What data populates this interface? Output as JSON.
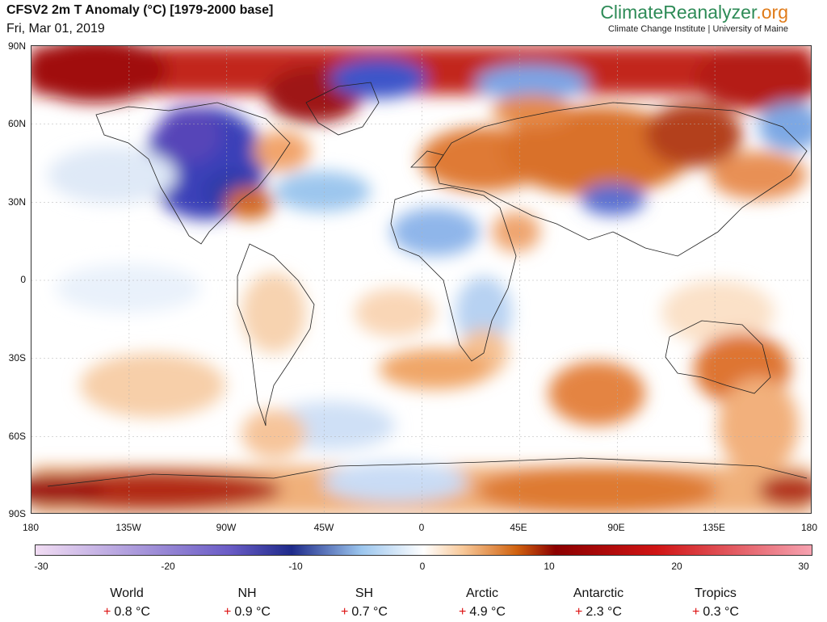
{
  "header": {
    "title": "CFSV2 2m T Anomaly (°C) [1979-2000 base]",
    "date": "Fri, Mar 01, 2019",
    "brand_part1": "Climate",
    "brand_part2": "Reanalyzer",
    "brand_part3": ".org",
    "brand_sub": "Climate Change Institute | University of Maine"
  },
  "map": {
    "lat_labels": [
      "90N",
      "60N",
      "30N",
      "0",
      "30S",
      "60S",
      "90S"
    ],
    "lon_labels": [
      "180",
      "135W",
      "90W",
      "45W",
      "0",
      "45E",
      "90E",
      "135E",
      "180"
    ]
  },
  "colorbar": {
    "labels": [
      "-30",
      "-20",
      "-10",
      "0",
      "10",
      "20",
      "30"
    ],
    "range": [
      -30,
      30
    ],
    "colors": {
      "very_cold": "#f1dcf3",
      "cold": "#6a5cc6",
      "cold_deep": "#1e2a8a",
      "cool": "#9cc6ee",
      "neutral": "#ffffff",
      "warm": "#f8c99a",
      "hot": "#d0620f",
      "very_hot": "#8b0000",
      "extreme": "#f6a2b0"
    }
  },
  "stats": [
    {
      "label": "World",
      "sign": "+",
      "value": "0.8 °C"
    },
    {
      "label": "NH",
      "sign": "+",
      "value": "0.9 °C"
    },
    {
      "label": "SH",
      "sign": "+",
      "value": "0.7 °C"
    },
    {
      "label": "Arctic",
      "sign": "+",
      "value": "4.9 °C"
    },
    {
      "label": "Antarctic",
      "sign": "+",
      "value": "2.3 °C"
    },
    {
      "label": "Tropics",
      "sign": "+",
      "value": "0.3 °C"
    }
  ]
}
